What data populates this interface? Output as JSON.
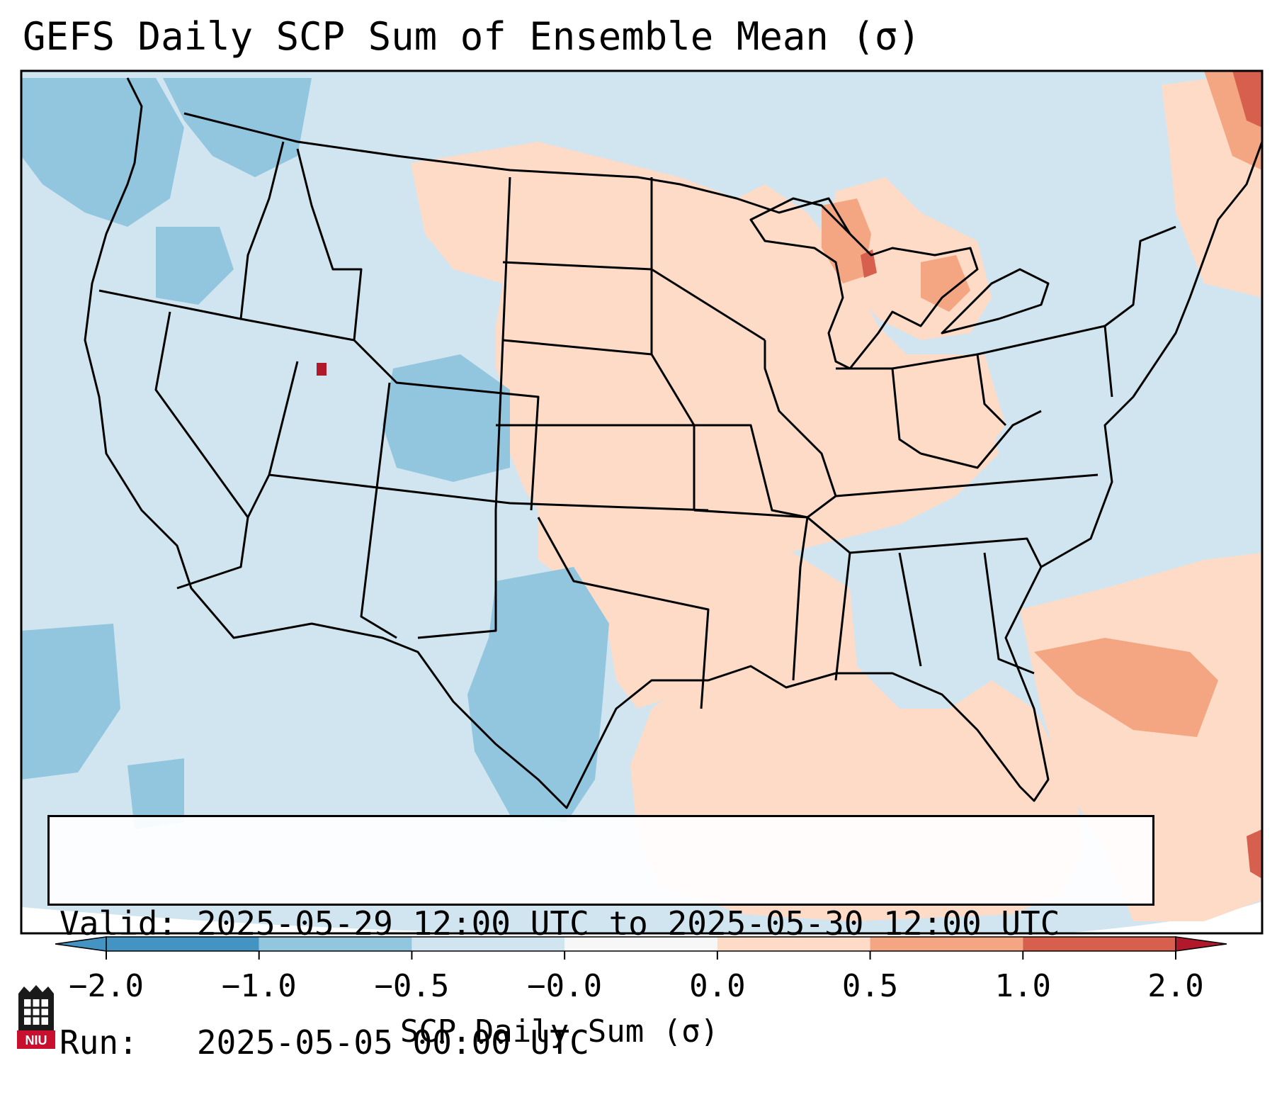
{
  "title": "GEFS Daily SCP Sum of Ensemble Mean (σ)",
  "info": {
    "valid_label": "Valid:",
    "valid_value": "2025-05-29 12:00 UTC to 2025-05-30 12:00 UTC",
    "run_label": "Run:",
    "run_value": "2025-05-05 00:00 UTC"
  },
  "colorbar": {
    "label": "SCP Daily Sum (σ)",
    "ticks": [
      "−2.0",
      "−1.0",
      "−0.5",
      "−0.0",
      "0.0",
      "0.5",
      "1.0",
      "2.0"
    ],
    "colors": [
      "#4393c3",
      "#92c5de",
      "#d1e5f0",
      "#f7f7f7",
      "#fddbc7",
      "#f4a582",
      "#d6604d",
      "#b2182b"
    ],
    "extend": "both"
  },
  "logo": {
    "text": "NIU",
    "colors": {
      "red": "#c8102e",
      "black": "#1a1a1a"
    }
  },
  "map": {
    "background_color": "#d1e5f0",
    "positive_color": "#fddbc7",
    "border_color": "#000000"
  }
}
